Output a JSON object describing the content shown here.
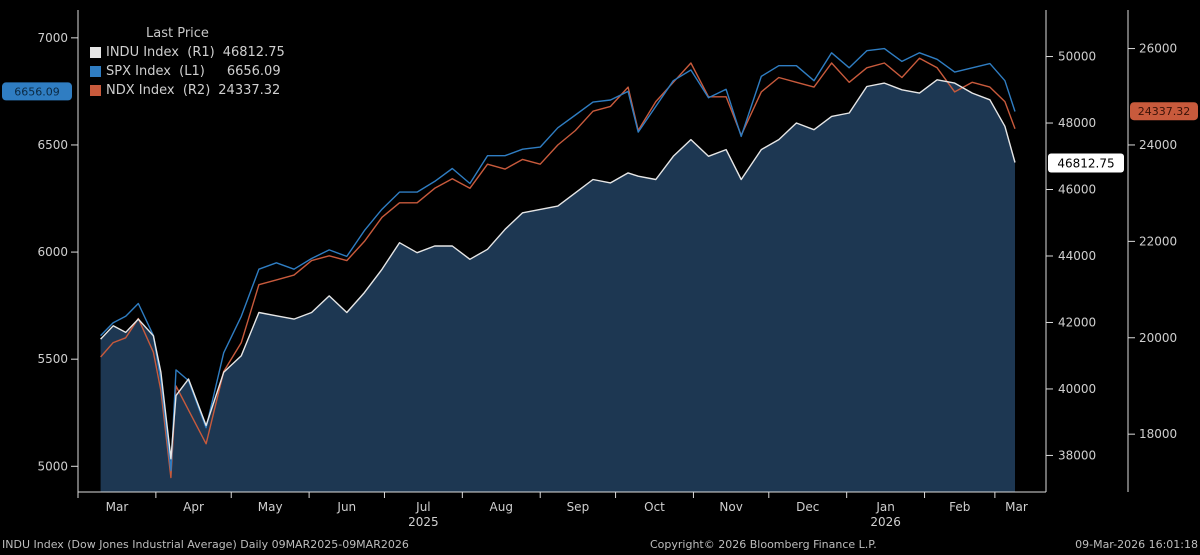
{
  "legend": {
    "title": "Last Price",
    "entries": [
      {
        "label": "INDU Index  (R1)",
        "value": "46812.75",
        "color": "#e6e6e6"
      },
      {
        "label": "SPX Index  (L1)",
        "value": "6656.09",
        "color": "#2f7dc2"
      },
      {
        "label": "NDX Index  (R2)",
        "value": "24337.32",
        "color": "#c85a3c"
      }
    ]
  },
  "footer": {
    "left": "INDU Index (Dow Jones Industrial Average) Daily 09MAR2025-09MAR2026",
    "center": "Copyright© 2026 Bloomberg Finance L.P.",
    "right": "09-Mar-2026 16:01:18"
  },
  "colors": {
    "background": "#000000",
    "fill": "#1f3a56",
    "indu": "#e6e6e6",
    "spx": "#2f7dc2",
    "ndx": "#c85a3c"
  },
  "chart_data": {
    "type": "line",
    "title": "",
    "x_ticks": [
      "Mar",
      "Apr",
      "May",
      "Jun",
      "Jul",
      "Aug",
      "Sep",
      "Oct",
      "Nov",
      "Dec",
      "Jan",
      "Feb",
      "Mar"
    ],
    "x_year_labels": [
      {
        "month": "Jul",
        "year": "2025"
      },
      {
        "month": "Jan",
        "year": "2026"
      }
    ],
    "axes": {
      "left": {
        "label": "L1",
        "ticks": [
          5000,
          5500,
          6000,
          6500,
          7000
        ],
        "range": [
          4880,
          7130
        ]
      },
      "right1": {
        "label": "R1",
        "ticks": [
          38000,
          40000,
          42000,
          44000,
          46000,
          48000,
          50000
        ],
        "range": [
          36900,
          51400
        ]
      },
      "right2": {
        "label": "R2",
        "ticks": [
          18000,
          20000,
          22000,
          24000,
          26000
        ],
        "range": [
          16800,
          26800
        ]
      }
    },
    "last_price_tags": {
      "SPX": "6656.09",
      "INDU": "46812.75",
      "NDX": "24337.32"
    },
    "x": [
      "2025-03-10",
      "2025-03-15",
      "2025-03-20",
      "2025-03-25",
      "2025-03-31",
      "2025-04-03",
      "2025-04-07",
      "2025-04-09",
      "2025-04-14",
      "2025-04-21",
      "2025-04-28",
      "2025-05-05",
      "2025-05-12",
      "2025-05-19",
      "2025-05-26",
      "2025-06-02",
      "2025-06-09",
      "2025-06-16",
      "2025-06-23",
      "2025-06-30",
      "2025-07-07",
      "2025-07-14",
      "2025-07-21",
      "2025-07-28",
      "2025-08-04",
      "2025-08-11",
      "2025-08-18",
      "2025-08-25",
      "2025-09-01",
      "2025-09-08",
      "2025-09-15",
      "2025-09-22",
      "2025-09-29",
      "2025-10-06",
      "2025-10-10",
      "2025-10-17",
      "2025-10-24",
      "2025-10-31",
      "2025-11-07",
      "2025-11-14",
      "2025-11-20",
      "2025-11-28",
      "2025-12-05",
      "2025-12-12",
      "2025-12-19",
      "2025-12-26",
      "2026-01-02",
      "2026-01-09",
      "2026-01-16",
      "2026-01-23",
      "2026-01-30",
      "2026-02-06",
      "2026-02-13",
      "2026-02-20",
      "2026-02-27",
      "2026-03-05",
      "2026-03-09"
    ],
    "series": [
      {
        "name": "INDU Index",
        "axis": "right1",
        "values": [
          41500,
          41900,
          41700,
          42100,
          41600,
          40500,
          37900,
          39800,
          40300,
          38900,
          40500,
          41000,
          42300,
          42200,
          42100,
          42300,
          42800,
          42300,
          42900,
          43600,
          44400,
          44100,
          44300,
          44300,
          43900,
          44200,
          44800,
          45300,
          45400,
          45500,
          45900,
          46300,
          46200,
          46500,
          46400,
          46300,
          47000,
          47500,
          47000,
          47200,
          46300,
          47200,
          47500,
          48000,
          47800,
          48200,
          48300,
          49100,
          49200,
          49000,
          48900,
          49300,
          49200,
          48900,
          48700,
          47900,
          46812.75
        ]
      },
      {
        "name": "SPX Index",
        "axis": "left",
        "values": [
          5610,
          5670,
          5700,
          5760,
          5610,
          5400,
          4980,
          5450,
          5400,
          5180,
          5530,
          5700,
          5920,
          5950,
          5920,
          5970,
          6010,
          5980,
          6100,
          6200,
          6280,
          6280,
          6330,
          6390,
          6320,
          6450,
          6450,
          6480,
          6490,
          6580,
          6640,
          6700,
          6710,
          6750,
          6560,
          6680,
          6800,
          6850,
          6720,
          6760,
          6540,
          6820,
          6870,
          6870,
          6800,
          6930,
          6860,
          6940,
          6950,
          6890,
          6930,
          6900,
          6840,
          6860,
          6880,
          6800,
          6656.09
        ]
      },
      {
        "name": "NDX Index",
        "axis": "right2",
        "values": [
          19600,
          19900,
          20000,
          20400,
          19700,
          18900,
          17100,
          19000,
          18500,
          17800,
          19300,
          19900,
          21100,
          21200,
          21300,
          21600,
          21700,
          21600,
          22000,
          22500,
          22800,
          22800,
          23100,
          23300,
          23100,
          23600,
          23500,
          23700,
          23600,
          24000,
          24300,
          24700,
          24800,
          25200,
          24300,
          24900,
          25300,
          25700,
          25000,
          25000,
          24200,
          25100,
          25400,
          25300,
          25200,
          25700,
          25300,
          25600,
          25700,
          25400,
          25800,
          25600,
          25100,
          25300,
          25200,
          24900,
          24337.32
        ]
      }
    ],
    "grid": false,
    "legend_position": "top-left"
  }
}
